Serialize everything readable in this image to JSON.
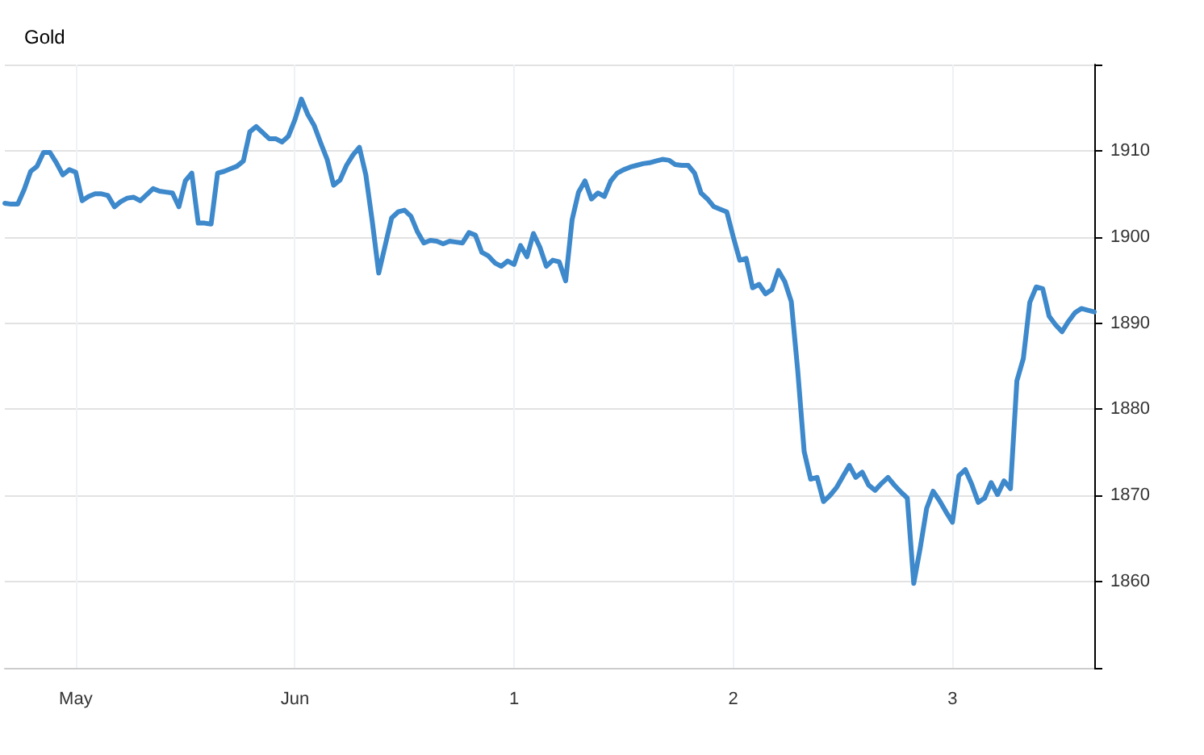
{
  "chart_data": {
    "type": "line",
    "title": "Gold",
    "categories": [
      null,
      null,
      null,
      null,
      null,
      null,
      null,
      null,
      null,
      null,
      null,
      "May",
      null,
      null,
      null,
      null,
      null,
      null,
      null,
      null,
      null,
      null,
      null,
      null,
      null,
      null,
      null,
      null,
      null,
      null,
      null,
      null,
      null,
      null,
      null,
      null,
      null,
      null,
      null,
      null,
      null,
      null,
      null,
      null,
      null,
      "Jun",
      null,
      null,
      null,
      null,
      null,
      null,
      null,
      null,
      null,
      null,
      null,
      null,
      null,
      null,
      null,
      null,
      null,
      null,
      null,
      null,
      null,
      null,
      null,
      null,
      null,
      null,
      null,
      null,
      null,
      null,
      null,
      null,
      null,
      "1",
      null,
      null,
      null,
      null,
      null,
      null,
      null,
      null,
      null,
      null,
      null,
      null,
      null,
      null,
      null,
      null,
      null,
      null,
      null,
      null,
      null,
      null,
      null,
      null,
      null,
      null,
      null,
      null,
      null,
      null,
      null,
      null,
      null,
      "2",
      null,
      null,
      null,
      null,
      null,
      null,
      null,
      null,
      null,
      null,
      null,
      null,
      null,
      null,
      null,
      null,
      null,
      null,
      null,
      null,
      null,
      null,
      null,
      null,
      null,
      null,
      null,
      null,
      null,
      null,
      null,
      null,
      null,
      "3",
      null,
      null,
      null,
      null,
      null,
      null,
      null,
      null,
      null,
      null,
      null,
      null,
      null,
      null,
      null,
      null,
      null,
      null,
      null,
      null,
      null,
      null
    ],
    "ylim": [
      1850,
      1920
    ],
    "yticks": [
      {
        "value": 1850,
        "label": null
      },
      1860,
      1870,
      1880,
      1890,
      1900,
      1910,
      {
        "value": 1920,
        "label": null
      }
    ],
    "grid": true,
    "marker": "none",
    "line_style": "solid",
    "series": [
      {
        "color": "#3d89cb",
        "values": [
          1903.9,
          1903.8,
          1903.8,
          1905.5,
          1907.6,
          1908.2,
          1909.8,
          1909.8,
          1908.6,
          1907.2,
          1907.8,
          1907.5,
          1904.2,
          1904.7,
          1905.0,
          1905.0,
          1904.8,
          1903.5,
          1904.1,
          1904.5,
          1904.6,
          1904.2,
          1904.9,
          1905.6,
          1905.3,
          1905.2,
          1905.1,
          1903.5,
          1906.5,
          1907.4,
          1901.6,
          1901.6,
          1901.5,
          1907.4,
          1907.6,
          1907.9,
          1908.2,
          1908.8,
          1912.2,
          1912.8,
          1912.1,
          1911.4,
          1911.4,
          1911.0,
          1911.7,
          1913.6,
          1916.0,
          1914.2,
          1912.9,
          1910.9,
          1909.0,
          1906.0,
          1906.6,
          1908.3,
          1909.5,
          1910.4,
          1907.2,
          1901.8,
          1895.8,
          1899.0,
          1902.2,
          1902.9,
          1903.1,
          1902.4,
          1900.6,
          1899.3,
          1899.6,
          1899.5,
          1899.2,
          1899.5,
          1899.4,
          1899.3,
          1900.5,
          1900.2,
          1898.2,
          1897.8,
          1897.0,
          1896.6,
          1897.2,
          1896.8,
          1899.0,
          1897.7,
          1900.4,
          1898.8,
          1896.6,
          1897.3,
          1897.1,
          1894.9,
          1902.0,
          1905.2,
          1906.5,
          1904.4,
          1905.1,
          1904.7,
          1906.5,
          1907.4,
          1907.8,
          1908.1,
          1908.3,
          1908.5,
          1908.6,
          1908.8,
          1909.0,
          1908.9,
          1908.4,
          1908.3,
          1908.3,
          1907.4,
          1905.1,
          1904.4,
          1903.5,
          1903.2,
          1902.9,
          1900.0,
          1897.3,
          1897.5,
          1894.1,
          1894.5,
          1893.4,
          1893.9,
          1896.1,
          1894.8,
          1892.5,
          1884.5,
          1875.1,
          1871.9,
          1872.1,
          1869.3,
          1870.0,
          1870.9,
          1872.2,
          1873.5,
          1872.1,
          1872.7,
          1871.2,
          1870.6,
          1871.4,
          1872.1,
          1871.2,
          1870.4,
          1869.7,
          1859.8,
          1863.9,
          1868.5,
          1870.5,
          1869.4,
          1868.1,
          1866.9,
          1872.3,
          1873.0,
          1871.3,
          1869.2,
          1869.7,
          1871.5,
          1870.1,
          1871.7,
          1870.8,
          1883.3,
          1885.9,
          1892.4,
          1894.2,
          1894.0,
          1890.8,
          1889.8,
          1889.0,
          1890.2,
          1891.2,
          1891.7,
          1891.5,
          1891.3
        ]
      }
    ]
  }
}
